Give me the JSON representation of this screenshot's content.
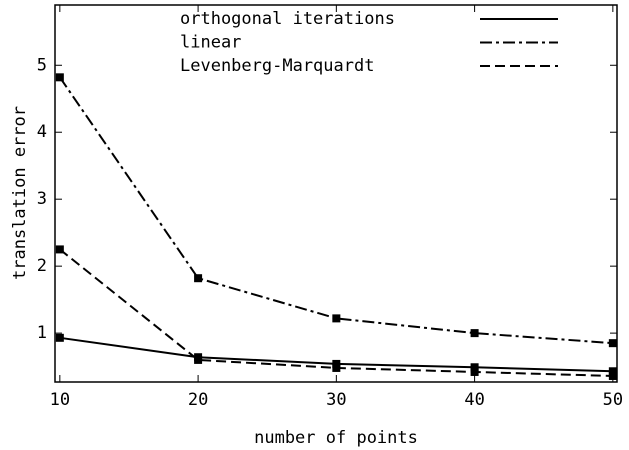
{
  "chart_data": {
    "type": "line",
    "x_label": "number of points",
    "y_label": "translation error",
    "x": [
      10,
      20,
      30,
      40,
      50
    ],
    "series": [
      {
        "name": "orthogonal iterations",
        "color": "#000000",
        "dash": "solid",
        "values": [
          0.93,
          0.64,
          0.54,
          0.49,
          0.43
        ]
      },
      {
        "name": "linear",
        "color": "#000000",
        "dash": "dashdot",
        "values": [
          4.82,
          1.82,
          1.22,
          1.0,
          0.85
        ]
      },
      {
        "name": "Levenberg-Marquardt",
        "color": "#000000",
        "dash": "dashed",
        "values": [
          2.25,
          0.6,
          0.48,
          0.42,
          0.36
        ]
      }
    ],
    "xlim": [
      9.65,
      50.3
    ],
    "ylim": [
      0.27,
      5.9
    ],
    "xticks": [
      10,
      20,
      30,
      40,
      50
    ],
    "yticks": [
      1,
      2,
      3,
      4,
      5
    ],
    "legend": "upper center",
    "marker": "square"
  }
}
